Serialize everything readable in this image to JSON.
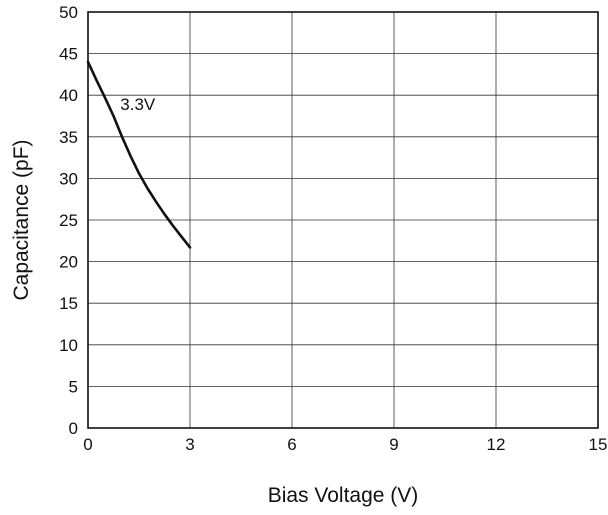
{
  "chart_data": {
    "type": "line",
    "title": "",
    "xlabel": "Bias Voltage (V)",
    "ylabel": "Capacitance (pF)",
    "xlim": [
      0,
      15
    ],
    "ylim": [
      0,
      50
    ],
    "x_ticks": [
      0,
      3,
      6,
      9,
      12,
      15
    ],
    "y_ticks": [
      0,
      5,
      10,
      15,
      20,
      25,
      30,
      35,
      40,
      45,
      50
    ],
    "grid": true,
    "legend": "none",
    "series": [
      {
        "label": "3.3V",
        "color": "#111111",
        "x": [
          0,
          0.25,
          0.5,
          0.75,
          1.0,
          1.25,
          1.5,
          1.75,
          2.0,
          2.25,
          2.5,
          2.75,
          3.0
        ],
        "y": [
          44.0,
          41.8,
          39.7,
          37.5,
          35.0,
          32.7,
          30.6,
          28.8,
          27.2,
          25.7,
          24.3,
          23.0,
          21.7
        ]
      }
    ],
    "annotations": [
      {
        "text": "3.3V",
        "x": 0.95,
        "y": 38.2
      }
    ]
  }
}
